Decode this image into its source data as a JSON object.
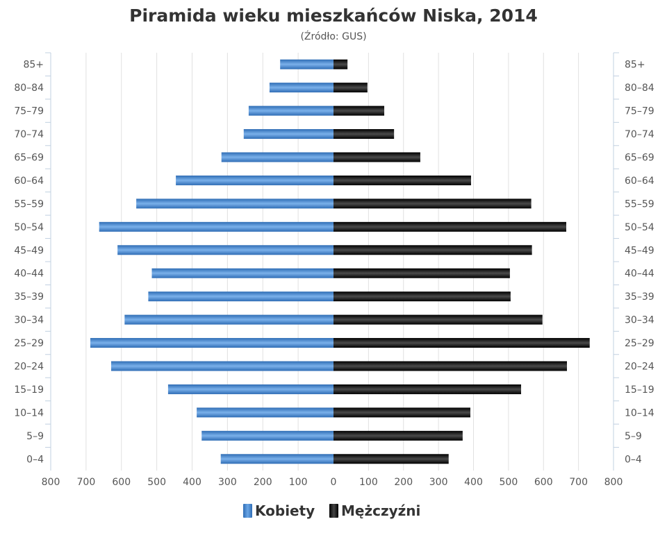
{
  "chart_data": {
    "type": "bar",
    "orientation": "horizontal-population-pyramid",
    "title": "Piramida wieku mieszkańców Niska, 2014",
    "subtitle": "(Źródło: GUS)",
    "categories": [
      "85+",
      "80-84",
      "75-79",
      "70-74",
      "65-69",
      "60-64",
      "55-59",
      "50-54",
      "45-49",
      "40-44",
      "35-39",
      "30-34",
      "25-29",
      "20-24",
      "15-19",
      "10-14",
      "5-9",
      "0-4"
    ],
    "series": [
      {
        "name": "Kobiety",
        "color": "#4a8ad0",
        "side": "left",
        "values": [
          151,
          181,
          240,
          254,
          317,
          446,
          558,
          663,
          611,
          514,
          524,
          591,
          688,
          629,
          468,
          387,
          373,
          319
        ]
      },
      {
        "name": "Mężczyźni",
        "color": "#1a1a1a",
        "side": "right",
        "values": [
          40,
          97,
          145,
          173,
          248,
          393,
          565,
          665,
          567,
          504,
          506,
          597,
          732,
          667,
          536,
          391,
          369,
          329
        ]
      }
    ],
    "xlim": [
      -800,
      800
    ],
    "xticks": [
      "800",
      "700",
      "600",
      "500",
      "400",
      "300",
      "200",
      "100",
      "0",
      "100",
      "200",
      "300",
      "400",
      "500",
      "600",
      "700",
      "800"
    ],
    "grid": true,
    "legend": "bottom-center"
  }
}
